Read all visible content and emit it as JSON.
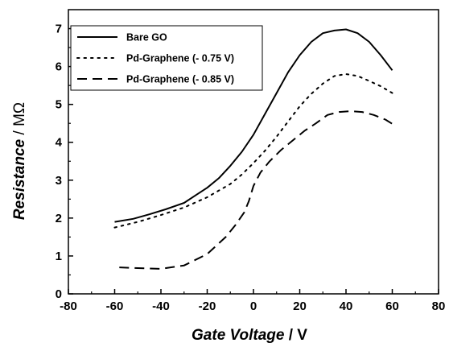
{
  "chart_data": {
    "type": "line",
    "xlabel_main": "Gate Voltage",
    "xlabel_unit": " / V",
    "ylabel_main": "Resistance",
    "ylabel_unit": " / MΩ",
    "xlim": [
      -80,
      80
    ],
    "ylim": [
      0,
      7.5
    ],
    "xticks": [
      -80,
      -60,
      -40,
      -20,
      0,
      20,
      40,
      60,
      80
    ],
    "yticks": [
      0,
      1,
      2,
      3,
      4,
      5,
      6,
      7
    ],
    "grid": false,
    "legend_position": "top-left",
    "series": [
      {
        "name": "Bare GO",
        "style": "solid",
        "color": "#000000",
        "x": [
          -60,
          -52,
          -45,
          -38,
          -30,
          -25,
          -20,
          -15,
          -10,
          -5,
          0,
          5,
          10,
          15,
          20,
          25,
          30,
          35,
          40,
          45,
          50,
          55,
          60
        ],
        "y": [
          1.9,
          1.98,
          2.1,
          2.23,
          2.4,
          2.6,
          2.8,
          3.05,
          3.38,
          3.75,
          4.2,
          4.75,
          5.3,
          5.85,
          6.3,
          6.65,
          6.88,
          6.95,
          6.98,
          6.88,
          6.65,
          6.3,
          5.9
        ]
      },
      {
        "name": "Pd-Graphene (- 0.75 V)",
        "style": "dotted",
        "color": "#000000",
        "x": [
          -60,
          -50,
          -40,
          -30,
          -20,
          -10,
          -5,
          0,
          5,
          10,
          15,
          20,
          25,
          30,
          35,
          40,
          45,
          50,
          55,
          60
        ],
        "y": [
          1.75,
          1.9,
          2.08,
          2.28,
          2.55,
          2.9,
          3.15,
          3.45,
          3.78,
          4.15,
          4.55,
          4.95,
          5.28,
          5.55,
          5.75,
          5.8,
          5.75,
          5.62,
          5.48,
          5.3
        ]
      },
      {
        "name": "Pd-Graphene (- 0.85 V)",
        "style": "dashed",
        "color": "#000000",
        "x": [
          -58,
          -50,
          -40,
          -30,
          -20,
          -12,
          -8,
          -4,
          -2,
          0,
          3,
          7,
          12,
          17,
          22,
          27,
          32,
          37,
          42,
          47,
          52,
          57,
          61
        ],
        "y": [
          0.7,
          0.68,
          0.66,
          0.75,
          1.05,
          1.5,
          1.8,
          2.15,
          2.45,
          2.85,
          3.2,
          3.5,
          3.8,
          4.05,
          4.3,
          4.5,
          4.72,
          4.8,
          4.82,
          4.8,
          4.72,
          4.6,
          4.45
        ]
      }
    ]
  }
}
